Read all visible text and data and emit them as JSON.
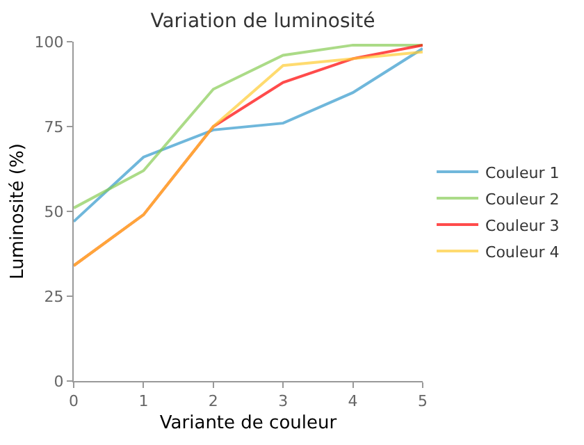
{
  "chart_data": {
    "type": "line",
    "title": "Variation de luminosité",
    "xlabel": "Variante de couleur",
    "ylabel": "Luminosité (%)",
    "x": [
      0,
      1,
      2,
      3,
      4,
      5
    ],
    "series": [
      {
        "name": "Couleur 1",
        "color": "#3399cc",
        "values": [
          47,
          66,
          74,
          76,
          85,
          98
        ]
      },
      {
        "name": "Couleur 2",
        "color": "#88cc55",
        "values": [
          51,
          62,
          86,
          96,
          99,
          99
        ]
      },
      {
        "name": "Couleur 3",
        "color": "#ff0000",
        "values": [
          34,
          49,
          75,
          88,
          95,
          99
        ]
      },
      {
        "name": "Couleur 4",
        "color": "#ffcc33",
        "values": [
          34,
          49,
          75,
          93,
          95,
          97
        ]
      }
    ],
    "xlim": [
      0,
      5
    ],
    "xticks": [
      0,
      1,
      2,
      3,
      4,
      5
    ],
    "ylim": [
      0,
      100
    ],
    "yticks": [
      0,
      25,
      50,
      75,
      100
    ],
    "legend": "right",
    "marker": "none",
    "line_style": "solid"
  }
}
